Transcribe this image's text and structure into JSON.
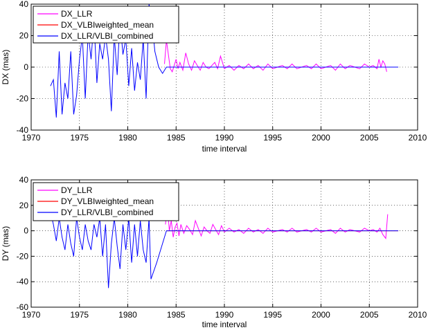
{
  "chart_data": [
    {
      "type": "line",
      "title": "",
      "xlabel": "time interval",
      "ylabel": "DX (mas)",
      "xlim": [
        1970,
        2010
      ],
      "ylim": [
        -40,
        40
      ],
      "xticks": [
        1970,
        1975,
        1980,
        1985,
        1990,
        1995,
        2000,
        2005,
        2010
      ],
      "yticks": [
        -40,
        -20,
        0,
        20,
        40
      ],
      "grid": true,
      "legend_position": "top-left",
      "series": [
        {
          "name": "DX_LLR",
          "color": "#ff00ff",
          "x": [
            1983.8,
            1984.0,
            1984.2,
            1984.4,
            1984.6,
            1984.8,
            1985.0,
            1985.2,
            1985.4,
            1985.7,
            1986.0,
            1986.3,
            1986.6,
            1986.9,
            1987.2,
            1987.5,
            1987.8,
            1988.1,
            1988.4,
            1988.7,
            1989.0,
            1989.3,
            1989.6,
            1990.0,
            1990.5,
            1991.0,
            1991.5,
            1992.0,
            1992.5,
            1993.0,
            1993.5,
            1994.0,
            1994.5,
            1995.0,
            1995.5,
            1996.0,
            1996.5,
            1997.0,
            1997.5,
            1998.0,
            1998.5,
            1999.0,
            1999.5,
            2000.0,
            2000.5,
            2001.0,
            2001.5,
            2002.0,
            2002.5,
            2003.0,
            2003.5,
            2004.0,
            2004.5,
            2005.0,
            2005.4,
            2005.8,
            2006.0,
            2006.2,
            2006.4,
            2006.6,
            2006.8
          ],
          "y": [
            2,
            17,
            8,
            -1,
            -3,
            1,
            5,
            -1,
            3,
            -2,
            9,
            2,
            -2,
            4,
            1,
            -2,
            3,
            0,
            -1,
            1,
            3,
            -1,
            7,
            -1,
            1,
            -2,
            1,
            -1,
            2,
            -1,
            1,
            -2,
            2,
            -1,
            0,
            1,
            -1,
            2,
            -1,
            0,
            1,
            -1,
            2,
            -1,
            0,
            1,
            -2,
            2,
            -1,
            1,
            0,
            -1,
            2,
            0,
            1,
            -1,
            5,
            0,
            4,
            2,
            -3
          ]
        },
        {
          "name": "DX_VLBIweighted_mean",
          "color": "#ff0000",
          "x": [
            1984.0,
            2008.0
          ],
          "y": [
            0,
            0
          ]
        },
        {
          "name": "DX_LLR/VLBI_combined",
          "color": "#0000ff",
          "x": [
            1972.0,
            1972.3,
            1972.6,
            1972.9,
            1973.2,
            1973.5,
            1973.8,
            1974.1,
            1974.4,
            1974.7,
            1975.0,
            1975.3,
            1975.6,
            1975.9,
            1976.2,
            1976.5,
            1976.8,
            1977.1,
            1977.4,
            1977.7,
            1978.0,
            1978.3,
            1978.6,
            1978.9,
            1979.2,
            1979.5,
            1979.8,
            1980.1,
            1980.4,
            1980.7,
            1981.0,
            1981.3,
            1981.6,
            1981.9,
            1982.2,
            1982.5,
            1982.8,
            1983.2,
            1983.6,
            1984.0,
            1985.0,
            1990.0,
            1995.0,
            2000.0,
            2005.0,
            2008.0
          ],
          "y": [
            -12,
            -8,
            -32,
            10,
            -30,
            -10,
            -20,
            10,
            -30,
            -18,
            5,
            20,
            -20,
            22,
            5,
            30,
            -10,
            15,
            5,
            20,
            5,
            -28,
            20,
            -5,
            30,
            8,
            18,
            -12,
            12,
            -15,
            3,
            -8,
            18,
            -20,
            40,
            30,
            10,
            0,
            -4,
            0,
            0,
            0,
            0,
            0,
            0,
            0
          ]
        }
      ]
    },
    {
      "type": "line",
      "title": "",
      "xlabel": "time interval",
      "ylabel": "DY (mas)",
      "xlim": [
        1970,
        2010
      ],
      "ylim": [
        -60,
        40
      ],
      "xticks": [
        1970,
        1975,
        1980,
        1985,
        1990,
        1995,
        2000,
        2005,
        2010
      ],
      "yticks": [
        -60,
        -40,
        -20,
        0,
        20,
        40
      ],
      "grid": true,
      "legend_position": "top-left",
      "series": [
        {
          "name": "DY_LLR",
          "color": "#ff00ff",
          "x": [
            1983.9,
            1984.1,
            1984.3,
            1984.5,
            1984.7,
            1984.9,
            1985.1,
            1985.3,
            1985.5,
            1985.8,
            1986.1,
            1986.4,
            1986.7,
            1987.0,
            1987.3,
            1987.6,
            1987.9,
            1988.2,
            1988.5,
            1988.8,
            1989.1,
            1989.4,
            1989.7,
            1990.0,
            1990.5,
            1991.0,
            1991.5,
            1992.0,
            1992.5,
            1993.0,
            1993.5,
            1994.0,
            1994.5,
            1995.0,
            1995.5,
            1996.0,
            1996.5,
            1997.0,
            1997.5,
            1998.0,
            1998.5,
            1999.0,
            1999.5,
            2000.0,
            2000.5,
            2001.0,
            2001.5,
            2002.0,
            2002.5,
            2003.0,
            2003.5,
            2004.0,
            2004.5,
            2005.0,
            2005.4,
            2005.8,
            2006.1,
            2006.4,
            2006.7,
            2006.9
          ],
          "y": [
            5,
            20,
            0,
            8,
            -5,
            3,
            6,
            -4,
            5,
            -2,
            4,
            1,
            -3,
            8,
            2,
            -4,
            3,
            0,
            -2,
            5,
            1,
            -3,
            4,
            -1,
            2,
            -1,
            1,
            -2,
            2,
            -1,
            1,
            -2,
            2,
            -1,
            0,
            1,
            -1,
            2,
            -1,
            0,
            1,
            -1,
            2,
            -1,
            0,
            1,
            -2,
            2,
            -1,
            1,
            0,
            -1,
            2,
            0,
            1,
            -1,
            2,
            -3,
            -6,
            13
          ]
        },
        {
          "name": "DY_VLBIweighted_mean",
          "color": "#ff0000",
          "x": [
            1984.0,
            2008.0
          ],
          "y": [
            0,
            0
          ]
        },
        {
          "name": "DY_LLR/VLBI_combined",
          "color": "#0000ff",
          "x": [
            1972.0,
            1972.3,
            1972.6,
            1972.9,
            1973.2,
            1973.5,
            1973.8,
            1974.1,
            1974.4,
            1974.7,
            1975.0,
            1975.3,
            1975.6,
            1975.9,
            1976.2,
            1976.5,
            1976.8,
            1977.1,
            1977.4,
            1977.7,
            1978.0,
            1978.3,
            1978.6,
            1978.9,
            1979.2,
            1979.5,
            1979.8,
            1980.1,
            1980.4,
            1980.7,
            1981.0,
            1981.3,
            1981.6,
            1981.9,
            1982.2,
            1982.4,
            1983.0,
            1983.6,
            1984.0,
            1985.0,
            1990.0,
            1995.0,
            2000.0,
            2005.0,
            2008.0
          ],
          "y": [
            15,
            5,
            -8,
            10,
            -5,
            -15,
            5,
            -10,
            -20,
            10,
            -5,
            -15,
            5,
            -8,
            -15,
            5,
            -5,
            10,
            -20,
            5,
            -45,
            -10,
            10,
            -12,
            -30,
            5,
            -15,
            10,
            -25,
            5,
            -20,
            8,
            -15,
            -25,
            10,
            -38,
            -25,
            -10,
            0,
            0,
            0,
            0,
            0,
            0,
            0
          ]
        }
      ]
    }
  ]
}
